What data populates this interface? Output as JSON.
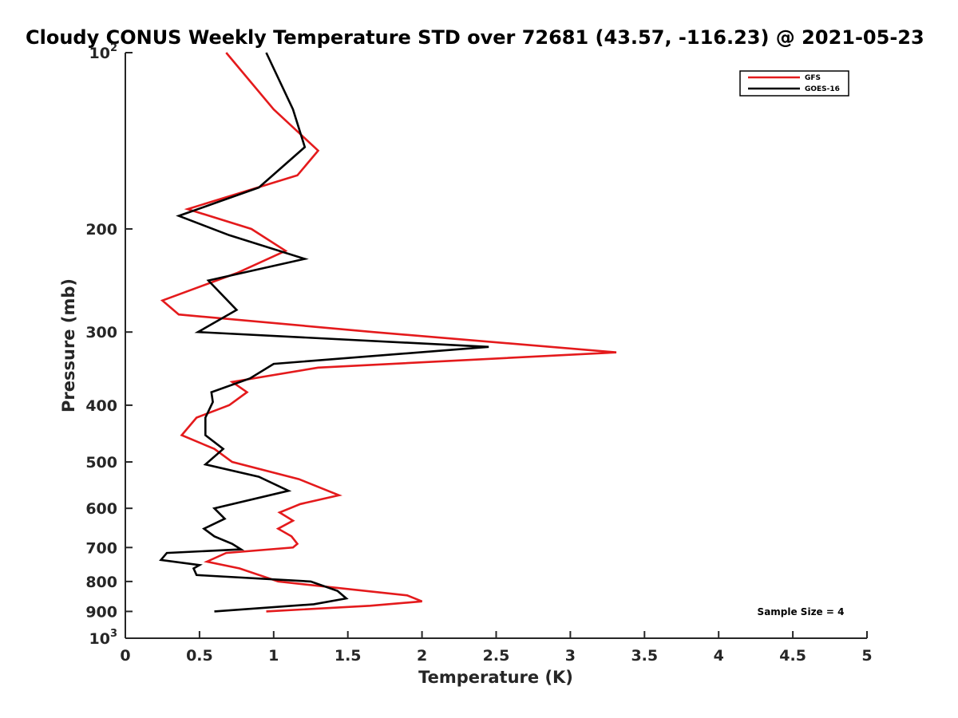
{
  "chart_data": {
    "type": "line",
    "title": "Cloudy CONUS Weekly Temperature STD over 72681 (43.57, -116.23) @ 2021-05-23",
    "xlabel": "Temperature (K)",
    "ylabel": "Pressure (mb)",
    "xlim": [
      0,
      5
    ],
    "ylim": [
      100,
      1000
    ],
    "y_scale": "log",
    "y_reversed": true,
    "x_ticks": [
      "0",
      "0.5",
      "1",
      "1.5",
      "2",
      "2.5",
      "3",
      "3.5",
      "4",
      "4.5",
      "5"
    ],
    "y_ticks": [
      {
        "value": 100,
        "base": "10",
        "exp": "2"
      },
      {
        "value": 200,
        "label": "200"
      },
      {
        "value": 300,
        "label": "300"
      },
      {
        "value": 400,
        "label": "400"
      },
      {
        "value": 500,
        "label": "500"
      },
      {
        "value": 600,
        "label": "600"
      },
      {
        "value": 700,
        "label": "700"
      },
      {
        "value": 800,
        "label": "800"
      },
      {
        "value": 900,
        "label": "900"
      },
      {
        "value": 1000,
        "base": "10",
        "exp": "3"
      }
    ],
    "legend_position": "top-right",
    "grid": false,
    "annotation": "Sample Size = 4",
    "series": [
      {
        "name": "GFS",
        "color": "#e41a1c",
        "points": [
          [
            0.68,
            100
          ],
          [
            1.0,
            125
          ],
          [
            1.3,
            147
          ],
          [
            1.16,
            162
          ],
          [
            0.42,
            185
          ],
          [
            0.85,
            200
          ],
          [
            1.08,
            218
          ],
          [
            0.75,
            238
          ],
          [
            0.25,
            265
          ],
          [
            0.36,
            280
          ],
          [
            1.67,
            300
          ],
          [
            3.31,
            325
          ],
          [
            1.3,
            345
          ],
          [
            0.72,
            365
          ],
          [
            0.82,
            380
          ],
          [
            0.7,
            400
          ],
          [
            0.48,
            420
          ],
          [
            0.38,
            450
          ],
          [
            0.6,
            475
          ],
          [
            0.72,
            500
          ],
          [
            1.17,
            535
          ],
          [
            1.44,
            570
          ],
          [
            1.18,
            590
          ],
          [
            1.04,
            610
          ],
          [
            1.13,
            630
          ],
          [
            1.03,
            650
          ],
          [
            1.12,
            670
          ],
          [
            1.16,
            690
          ],
          [
            1.13,
            700
          ],
          [
            0.68,
            715
          ],
          [
            0.55,
            740
          ],
          [
            0.77,
            760
          ],
          [
            1.03,
            800
          ],
          [
            1.9,
            845
          ],
          [
            2.0,
            865
          ],
          [
            1.65,
            880
          ],
          [
            0.95,
            900
          ]
        ]
      },
      {
        "name": "GOES-16",
        "color": "#000000",
        "points": [
          [
            0.95,
            100
          ],
          [
            1.13,
            125
          ],
          [
            1.21,
            145
          ],
          [
            0.9,
            170
          ],
          [
            0.36,
            190
          ],
          [
            0.7,
            205
          ],
          [
            1.21,
            225
          ],
          [
            0.56,
            245
          ],
          [
            0.75,
            275
          ],
          [
            0.49,
            300
          ],
          [
            2.45,
            318
          ],
          [
            1.0,
            340
          ],
          [
            0.84,
            360
          ],
          [
            0.58,
            380
          ],
          [
            0.59,
            395
          ],
          [
            0.54,
            420
          ],
          [
            0.54,
            450
          ],
          [
            0.66,
            475
          ],
          [
            0.54,
            505
          ],
          [
            0.9,
            530
          ],
          [
            1.1,
            560
          ],
          [
            0.6,
            600
          ],
          [
            0.67,
            625
          ],
          [
            0.53,
            650
          ],
          [
            0.6,
            670
          ],
          [
            0.72,
            690
          ],
          [
            0.78,
            705
          ],
          [
            0.28,
            715
          ],
          [
            0.24,
            735
          ],
          [
            0.5,
            750
          ],
          [
            0.46,
            760
          ],
          [
            0.48,
            780
          ],
          [
            1.25,
            800
          ],
          [
            1.43,
            830
          ],
          [
            1.49,
            855
          ],
          [
            1.27,
            875
          ],
          [
            0.6,
            900
          ]
        ]
      }
    ]
  }
}
